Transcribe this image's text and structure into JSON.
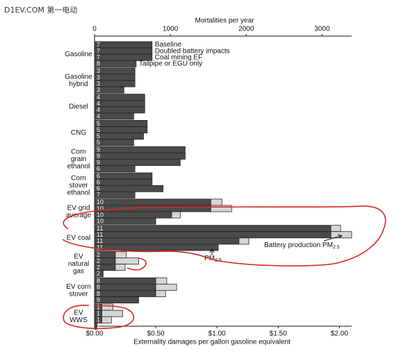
{
  "watermark": "D1EV.COM 第一电动",
  "chart_data": {
    "type": "grouped-stacked-barh",
    "x_label": "Externality damages per gallon gasoline equivalent",
    "x2_label": "Mortalities per year",
    "xlim": [
      0,
      2.1
    ],
    "xticks": [
      {
        "value": 0,
        "label": "$0.00"
      },
      {
        "value": 0.5,
        "label": "$0.50"
      },
      {
        "value": 1,
        "label": "$1.00"
      },
      {
        "value": 1.5,
        "label": "$1.50"
      },
      {
        "value": 2,
        "label": "$2.00"
      }
    ],
    "x2lim": [
      0,
      3390
    ],
    "x2ticks": [
      0,
      1000,
      2000,
      3000
    ],
    "scenarios": [
      "Baseline",
      "Doubled battery impacts",
      "Coal mining EF",
      "Tailpipe or EGU only"
    ],
    "colors": {
      "operation": "#4a4a4a",
      "battery": "#d6d6d6"
    },
    "groups": [
      {
        "label": [
          "Gasoline"
        ],
        "ranks": [
          7,
          7,
          7,
          8
        ],
        "values": [
          0.47,
          0.47,
          0.47,
          0.34
        ],
        "battery": [
          null,
          null,
          null,
          null
        ]
      },
      {
        "label": [
          "Gasoline",
          "hybrid"
        ],
        "ranks": [
          3,
          3,
          3,
          3
        ],
        "values": [
          0.33,
          0.33,
          0.33,
          0.24
        ],
        "battery": [
          null,
          null,
          null,
          null
        ]
      },
      {
        "label": [
          "Diesel"
        ],
        "ranks": [
          4,
          4,
          4,
          4
        ],
        "values": [
          0.41,
          0.41,
          0.41,
          0.32
        ],
        "battery": [
          null,
          null,
          null,
          null
        ]
      },
      {
        "label": [
          "CNG"
        ],
        "ranks": [
          5,
          5,
          5,
          5
        ],
        "values": [
          0.43,
          0.43,
          0.4,
          0.32
        ],
        "battery": [
          null,
          null,
          null,
          null
        ]
      },
      {
        "label": [
          "Corn",
          "grain",
          "ethanol"
        ],
        "ranks": [
          9,
          9,
          9,
          6
        ],
        "values": [
          0.74,
          0.74,
          0.7,
          0.33
        ],
        "battery": [
          null,
          null,
          null,
          null
        ]
      },
      {
        "label": [
          "Corn",
          "stover",
          "ethanol"
        ],
        "ranks": [
          6,
          6,
          6,
          7
        ],
        "values": [
          0.47,
          0.47,
          0.56,
          0.33
        ],
        "battery": [
          null,
          null,
          null,
          null
        ]
      },
      {
        "label": [
          "EV grid",
          "average"
        ],
        "ranks": [
          10,
          10,
          10,
          10
        ],
        "values": [
          0.95,
          0.95,
          0.63,
          0.5
        ],
        "battery": [
          0.09,
          0.17,
          0.07,
          null
        ]
      },
      {
        "label": [
          "EV coal"
        ],
        "ranks": [
          11,
          11,
          11,
          11
        ],
        "values": [
          1.93,
          1.93,
          1.18,
          1.01
        ],
        "battery": [
          0.08,
          0.17,
          0.08,
          null
        ]
      },
      {
        "label": [
          "EV",
          "natural",
          "gas"
        ],
        "ranks": [
          2,
          2,
          2,
          2
        ],
        "values": [
          0.17,
          0.17,
          0.17,
          0.07
        ],
        "battery": [
          0.09,
          0.19,
          0.08,
          null
        ]
      },
      {
        "label": [
          "EV corn",
          "stover"
        ],
        "ranks": [
          8,
          8,
          8,
          9
        ],
        "values": [
          0.5,
          0.5,
          0.5,
          0.36
        ],
        "battery": [
          0.09,
          0.17,
          0.08,
          null
        ]
      },
      {
        "label": [
          "EV",
          "WWS"
        ],
        "ranks": [
          1,
          1,
          1,
          1
        ],
        "values": [
          0.06,
          0.06,
          0.06,
          0.02
        ],
        "battery": [
          0.09,
          0.17,
          0.08,
          null
        ]
      }
    ],
    "annotations": [
      {
        "text": "Battery production PM",
        "sub": "2.5"
      },
      {
        "text": "PM",
        "sub": "2.5"
      }
    ]
  }
}
